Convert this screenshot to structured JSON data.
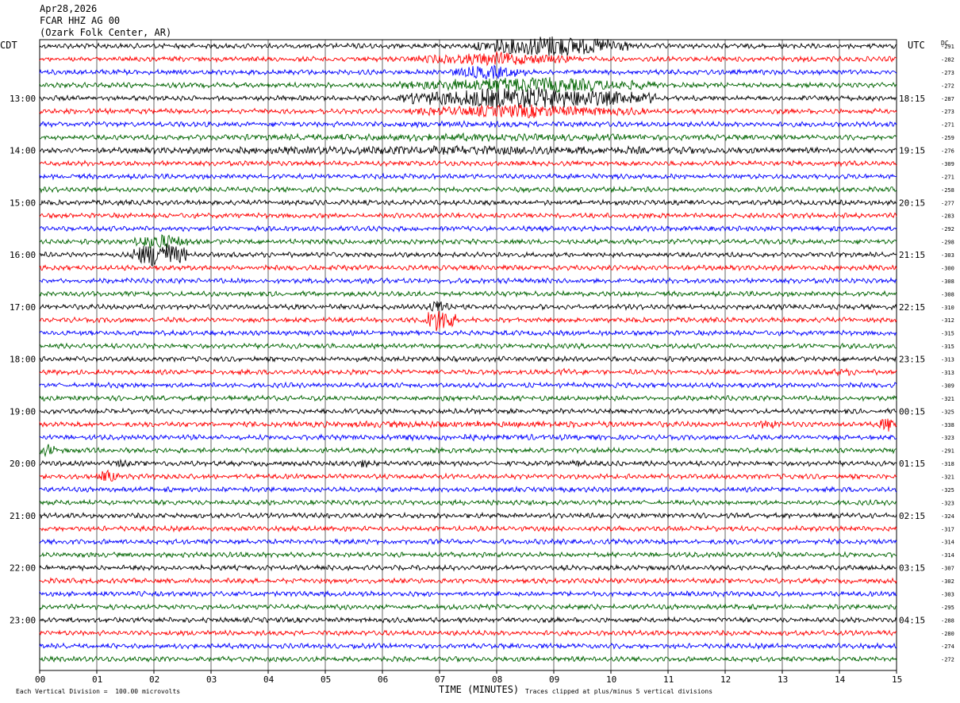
{
  "header": {
    "date": "Apr28,2026",
    "station": "FCAR HHZ AG 00",
    "location": "(Ozark Folk Center, AR)"
  },
  "labels": {
    "left_tz": "CDT",
    "right_tz": "UTC",
    "dc": "DC",
    "xlabel": "TIME (MINUTES)",
    "scale_note": "Each Vertical Division =  100.00 microvolts",
    "clip_note": "Traces clipped at plus/minus 5 vertical divisions"
  },
  "chart_data": {
    "type": "line",
    "title": "FCAR HHZ AG 00",
    "xlabel": "TIME (MINUTES)",
    "xlim": [
      0,
      15
    ],
    "x_ticks": [
      "00",
      "01",
      "02",
      "03",
      "04",
      "05",
      "06",
      "07",
      "08",
      "09",
      "10",
      "11",
      "12",
      "13",
      "14",
      "15"
    ],
    "trace_colors": [
      "#000000",
      "#ff0000",
      "#0000ff",
      "#006400"
    ],
    "trace_count": 48,
    "left_time_labels": [
      "13:00",
      "14:00",
      "15:00",
      "16:00",
      "17:00",
      "18:00",
      "19:00",
      "20:00",
      "21:00",
      "22:00",
      "23:00"
    ],
    "right_time_labels": [
      "18:15",
      "19:15",
      "20:15",
      "21:15",
      "22:15",
      "23:15",
      "00:15",
      "01:15",
      "02:15",
      "03:15",
      "04:15"
    ],
    "dc_offsets": [
      "-291",
      "-282",
      "-273",
      "-272",
      "-287",
      "-273",
      "-271",
      "-259",
      "-276",
      "-309",
      "-271",
      "-258",
      "-277",
      "-283",
      "-292",
      "-298",
      "-303",
      "-300",
      "-308",
      "-308",
      "-310",
      "-312",
      "-315",
      "-315",
      "-313",
      "-313",
      "-309",
      "-321",
      "-325",
      "-338",
      "-323",
      "-291",
      "-318",
      "-321",
      "-325",
      "-323",
      "-324",
      "-317",
      "-314",
      "-314",
      "-307",
      "-302",
      "-303",
      "-295",
      "-288",
      "-280",
      "-274",
      "-272"
    ],
    "grid": true
  }
}
